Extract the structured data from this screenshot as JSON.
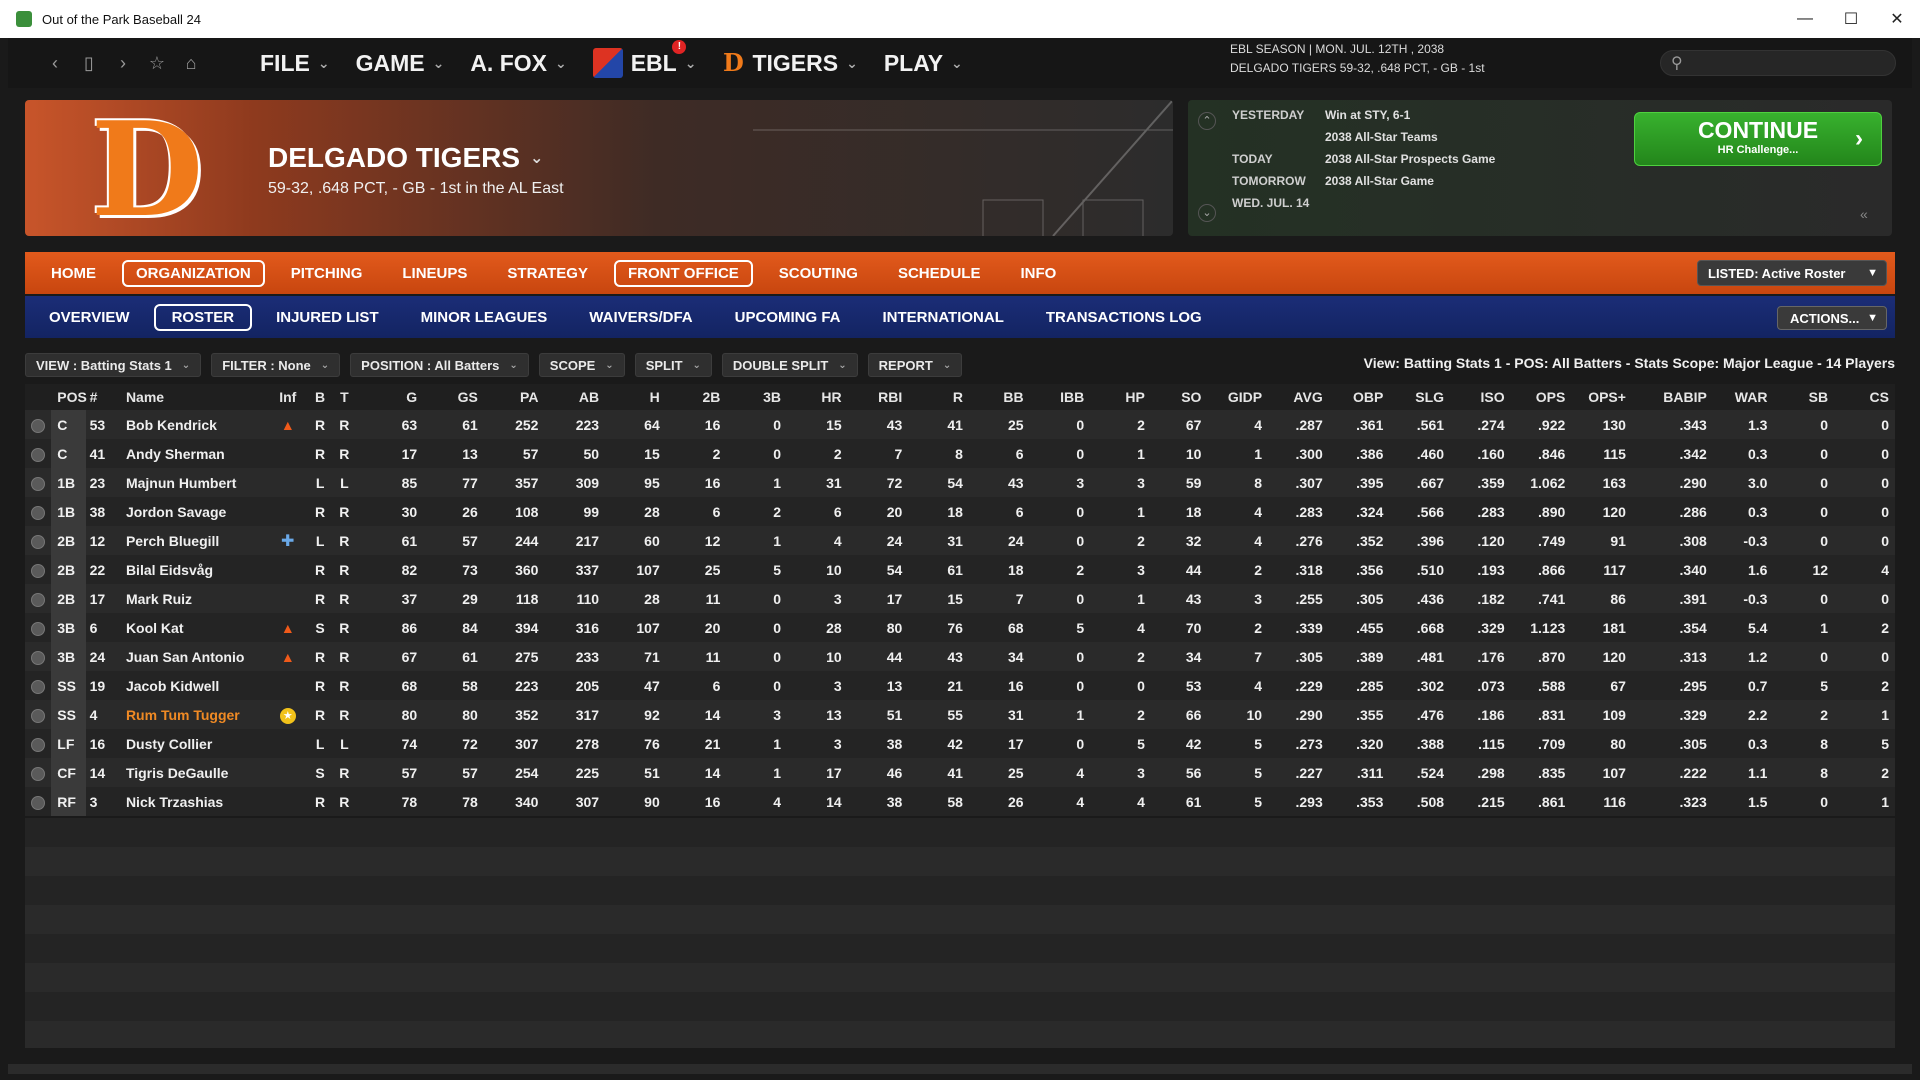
{
  "window": {
    "title": "Out of the Park Baseball 24"
  },
  "menu": [
    {
      "label": "FILE"
    },
    {
      "label": "GAME"
    },
    {
      "label": "A. FOX"
    },
    {
      "label": "EBL",
      "alert": "!"
    },
    {
      "label": "TIGERS"
    },
    {
      "label": "PLAY"
    }
  ],
  "season": {
    "line1": "EBL SEASON  |  MON. JUL. 12TH , 2038",
    "line2": "DELGADO TIGERS  59-32, .648 PCT, - GB - 1st"
  },
  "search": {
    "placeholder": ""
  },
  "team": {
    "logo_letter": "D",
    "name": "DELGADO TIGERS",
    "record": "59-32, .648 PCT, - GB - 1st in the AL East"
  },
  "schedule": [
    {
      "key": "YESTERDAY",
      "value": "Win at STY, 6-1"
    },
    {
      "key": "",
      "value": "2038 All-Star Teams"
    },
    {
      "key": "TODAY",
      "value": "2038 All-Star Prospects Game"
    },
    {
      "key": "TOMORROW",
      "value": "2038 All-Star Game"
    },
    {
      "key": "WED. JUL. 14",
      "value": ""
    }
  ],
  "continue": {
    "label": "CONTINUE",
    "sub": "HR Challenge..."
  },
  "tabs_main": [
    {
      "label": "HOME",
      "active": false
    },
    {
      "label": "ORGANIZATION",
      "active": true
    },
    {
      "label": "PITCHING",
      "active": false
    },
    {
      "label": "LINEUPS",
      "active": false
    },
    {
      "label": "STRATEGY",
      "active": false
    },
    {
      "label": "FRONT OFFICE",
      "active": true
    },
    {
      "label": "SCOUTING",
      "active": false
    },
    {
      "label": "SCHEDULE",
      "active": false
    },
    {
      "label": "INFO",
      "active": false
    }
  ],
  "listed_select": "LISTED: Active Roster",
  "tabs_sub": [
    {
      "label": "OVERVIEW",
      "active": false
    },
    {
      "label": "ROSTER",
      "active": true
    },
    {
      "label": "INJURED LIST",
      "active": false
    },
    {
      "label": "MINOR LEAGUES",
      "active": false
    },
    {
      "label": "WAIVERS/DFA",
      "active": false
    },
    {
      "label": "UPCOMING FA",
      "active": false
    },
    {
      "label": "INTERNATIONAL",
      "active": false
    },
    {
      "label": "TRANSACTIONS LOG",
      "active": false
    }
  ],
  "actions_label": "ACTIONS...",
  "filters": [
    {
      "label": "VIEW : Batting Stats 1"
    },
    {
      "label": "FILTER : None"
    },
    {
      "label": "POSITION : All Batters"
    },
    {
      "label": "SCOPE"
    },
    {
      "label": "SPLIT"
    },
    {
      "label": "DOUBLE SPLIT"
    },
    {
      "label": "REPORT"
    }
  ],
  "view_summary": "View: Batting Stats 1 - POS: All Batters - Stats Scope: Major League - 14 Players",
  "columns": [
    "",
    "POS",
    "#",
    "Name",
    "Inf",
    "B",
    "T",
    "G",
    "GS",
    "PA",
    "AB",
    "H",
    "2B",
    "3B",
    "HR",
    "RBI",
    "R",
    "BB",
    "IBB",
    "HP",
    "SO",
    "GIDP",
    "AVG",
    "OBP",
    "SLG",
    "ISO",
    "OPS",
    "OPS+",
    "BABIP",
    "WAR",
    "SB",
    "CS"
  ],
  "players": [
    {
      "pos": "C",
      "num": "53",
      "name": "Bob Kendrick",
      "inf": "fire",
      "b": "R",
      "t": "R",
      "stats": [
        "63",
        "61",
        "252",
        "223",
        "64",
        "16",
        "0",
        "15",
        "43",
        "41",
        "25",
        "0",
        "2",
        "67",
        "4",
        ".287",
        ".361",
        ".561",
        ".274",
        ".922",
        "130",
        ".343",
        "1.3",
        "0",
        "0"
      ]
    },
    {
      "pos": "C",
      "num": "41",
      "name": "Andy Sherman",
      "inf": "",
      "b": "R",
      "t": "R",
      "stats": [
        "17",
        "13",
        "57",
        "50",
        "15",
        "2",
        "0",
        "2",
        "7",
        "8",
        "6",
        "0",
        "1",
        "10",
        "1",
        ".300",
        ".386",
        ".460",
        ".160",
        ".846",
        "115",
        ".342",
        "0.3",
        "0",
        "0"
      ]
    },
    {
      "pos": "1B",
      "num": "23",
      "name": "Majnun Humbert",
      "inf": "",
      "b": "L",
      "t": "L",
      "stats": [
        "85",
        "77",
        "357",
        "309",
        "95",
        "16",
        "1",
        "31",
        "72",
        "54",
        "43",
        "3",
        "3",
        "59",
        "8",
        ".307",
        ".395",
        ".667",
        ".359",
        "1.062",
        "163",
        ".290",
        "3.0",
        "0",
        "0"
      ]
    },
    {
      "pos": "1B",
      "num": "38",
      "name": "Jordon Savage",
      "inf": "",
      "b": "R",
      "t": "R",
      "stats": [
        "30",
        "26",
        "108",
        "99",
        "28",
        "6",
        "2",
        "6",
        "20",
        "18",
        "6",
        "0",
        "1",
        "18",
        "4",
        ".283",
        ".324",
        ".566",
        ".283",
        ".890",
        "120",
        ".286",
        "0.3",
        "0",
        "0"
      ]
    },
    {
      "pos": "2B",
      "num": "12",
      "name": "Perch Bluegill",
      "inf": "plus",
      "b": "L",
      "t": "R",
      "stats": [
        "61",
        "57",
        "244",
        "217",
        "60",
        "12",
        "1",
        "4",
        "24",
        "31",
        "24",
        "0",
        "2",
        "32",
        "4",
        ".276",
        ".352",
        ".396",
        ".120",
        ".749",
        "91",
        ".308",
        "-0.3",
        "0",
        "0"
      ]
    },
    {
      "pos": "2B",
      "num": "22",
      "name": "Bilal Eidsvåg",
      "inf": "",
      "b": "R",
      "t": "R",
      "stats": [
        "82",
        "73",
        "360",
        "337",
        "107",
        "25",
        "5",
        "10",
        "54",
        "61",
        "18",
        "2",
        "3",
        "44",
        "2",
        ".318",
        ".356",
        ".510",
        ".193",
        ".866",
        "117",
        ".340",
        "1.6",
        "12",
        "4"
      ]
    },
    {
      "pos": "2B",
      "num": "17",
      "name": "Mark Ruiz",
      "inf": "",
      "b": "R",
      "t": "R",
      "stats": [
        "37",
        "29",
        "118",
        "110",
        "28",
        "11",
        "0",
        "3",
        "17",
        "15",
        "7",
        "0",
        "1",
        "43",
        "3",
        ".255",
        ".305",
        ".436",
        ".182",
        ".741",
        "86",
        ".391",
        "-0.3",
        "0",
        "0"
      ]
    },
    {
      "pos": "3B",
      "num": "6",
      "name": "Kool Kat",
      "inf": "fire",
      "b": "S",
      "t": "R",
      "stats": [
        "86",
        "84",
        "394",
        "316",
        "107",
        "20",
        "0",
        "28",
        "80",
        "76",
        "68",
        "5",
        "4",
        "70",
        "2",
        ".339",
        ".455",
        ".668",
        ".329",
        "1.123",
        "181",
        ".354",
        "5.4",
        "1",
        "2"
      ]
    },
    {
      "pos": "3B",
      "num": "24",
      "name": "Juan San Antonio",
      "inf": "fire",
      "b": "R",
      "t": "R",
      "stats": [
        "67",
        "61",
        "275",
        "233",
        "71",
        "11",
        "0",
        "10",
        "44",
        "43",
        "34",
        "0",
        "2",
        "34",
        "7",
        ".305",
        ".389",
        ".481",
        ".176",
        ".870",
        "120",
        ".313",
        "1.2",
        "0",
        "0"
      ]
    },
    {
      "pos": "SS",
      "num": "19",
      "name": "Jacob Kidwell",
      "inf": "",
      "b": "R",
      "t": "R",
      "stats": [
        "68",
        "58",
        "223",
        "205",
        "47",
        "6",
        "0",
        "3",
        "13",
        "21",
        "16",
        "0",
        "0",
        "53",
        "4",
        ".229",
        ".285",
        ".302",
        ".073",
        ".588",
        "67",
        ".295",
        "0.7",
        "5",
        "2"
      ]
    },
    {
      "pos": "SS",
      "num": "4",
      "name": "Rum Tum Tugger",
      "inf": "star",
      "highlight": true,
      "b": "R",
      "t": "R",
      "stats": [
        "80",
        "80",
        "352",
        "317",
        "92",
        "14",
        "3",
        "13",
        "51",
        "55",
        "31",
        "1",
        "2",
        "66",
        "10",
        ".290",
        ".355",
        ".476",
        ".186",
        ".831",
        "109",
        ".329",
        "2.2",
        "2",
        "1"
      ]
    },
    {
      "pos": "LF",
      "num": "16",
      "name": "Dusty Collier",
      "inf": "",
      "b": "L",
      "t": "L",
      "stats": [
        "74",
        "72",
        "307",
        "278",
        "76",
        "21",
        "1",
        "3",
        "38",
        "42",
        "17",
        "0",
        "5",
        "42",
        "5",
        ".273",
        ".320",
        ".388",
        ".115",
        ".709",
        "80",
        ".305",
        "0.3",
        "8",
        "5"
      ]
    },
    {
      "pos": "CF",
      "num": "14",
      "name": "Tigris DeGaulle",
      "inf": "",
      "b": "S",
      "t": "R",
      "stats": [
        "57",
        "57",
        "254",
        "225",
        "51",
        "14",
        "1",
        "17",
        "46",
        "41",
        "25",
        "4",
        "3",
        "56",
        "5",
        ".227",
        ".311",
        ".524",
        ".298",
        ".835",
        "107",
        ".222",
        "1.1",
        "8",
        "2"
      ]
    },
    {
      "pos": "RF",
      "num": "3",
      "name": "Nick Trzashias",
      "inf": "",
      "b": "R",
      "t": "R",
      "stats": [
        "78",
        "78",
        "340",
        "307",
        "90",
        "16",
        "4",
        "14",
        "38",
        "58",
        "26",
        "4",
        "4",
        "61",
        "5",
        ".293",
        ".353",
        ".508",
        ".215",
        ".861",
        "116",
        ".323",
        "1.5",
        "0",
        "1"
      ]
    }
  ]
}
